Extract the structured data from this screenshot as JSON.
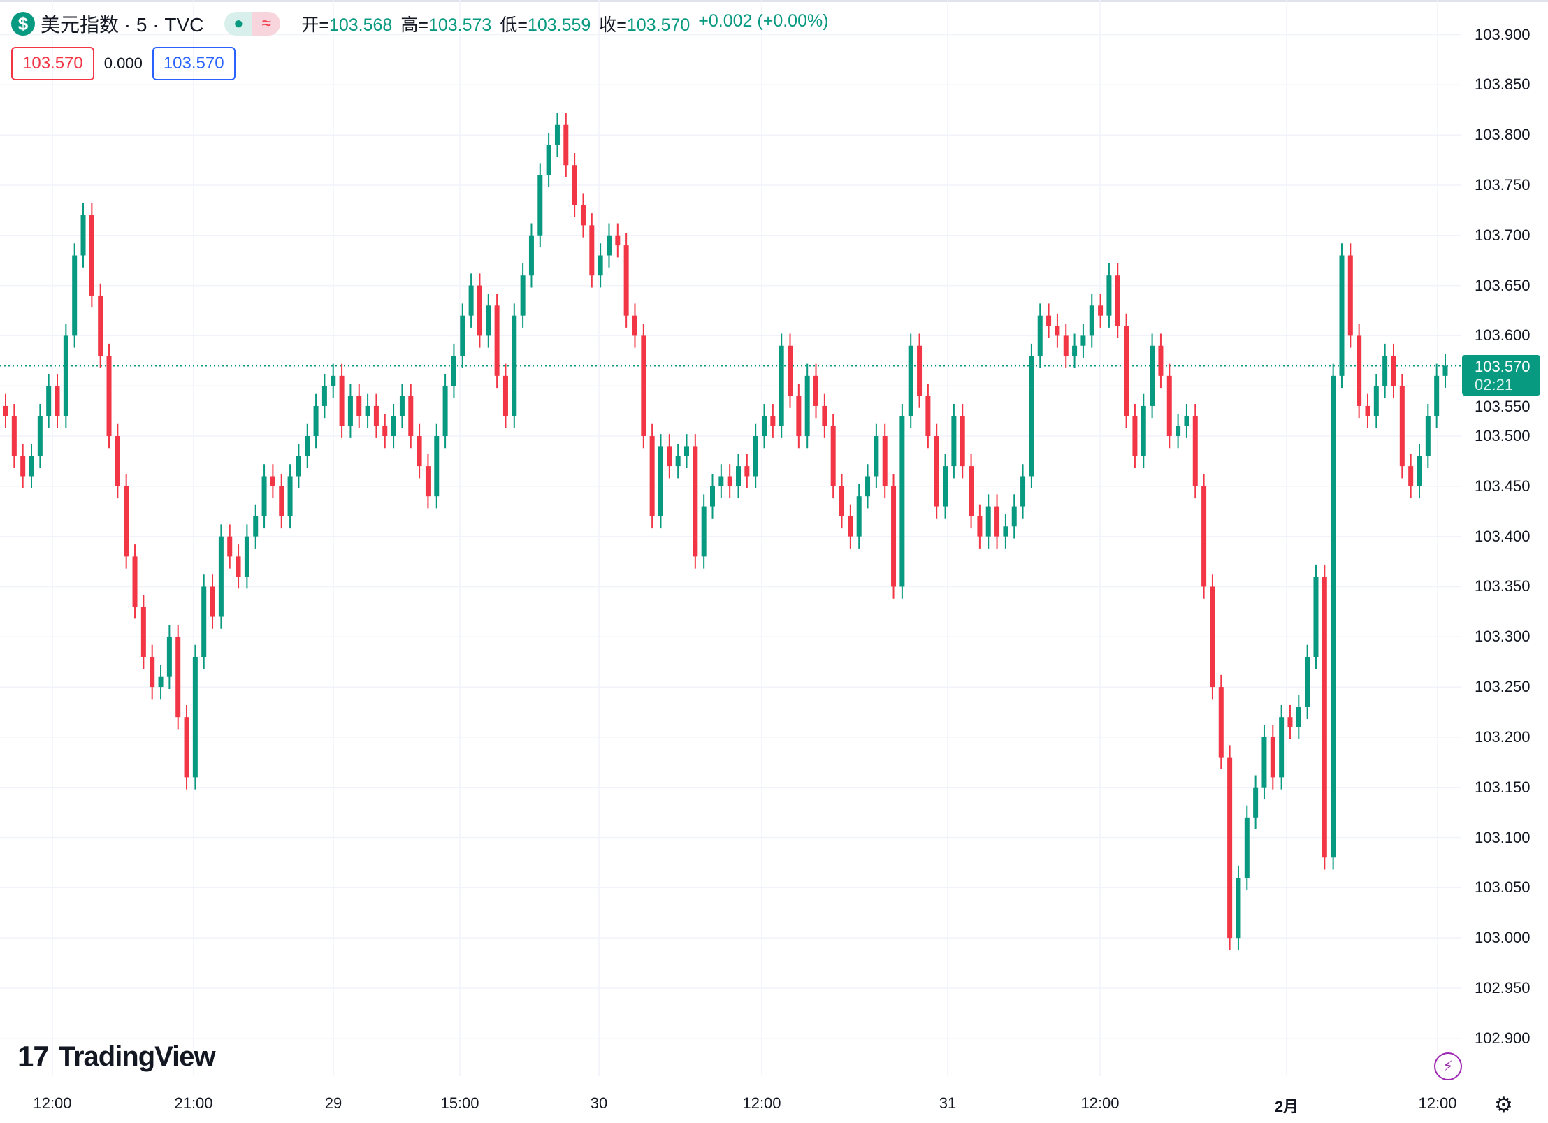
{
  "header": {
    "symbol_icon": "$",
    "title": "美元指数 · 5 · TVC",
    "toggle_icons": [
      "●",
      "≈"
    ],
    "ohlc": [
      {
        "label": "开=",
        "value": "103.568"
      },
      {
        "label": "高=",
        "value": "103.573"
      },
      {
        "label": "低=",
        "value": "103.559"
      },
      {
        "label": "收=",
        "value": "103.570"
      }
    ],
    "change": "+0.002 (+0.00%)",
    "sell_price": "103.570",
    "spread": "0.000",
    "buy_price": "103.570"
  },
  "price_tag": {
    "price": "103.570",
    "countdown": "02:21"
  },
  "logo_text": "TradingView",
  "colors": {
    "up": "#089981",
    "down": "#f23645",
    "grid": "#f0f3fa",
    "accent": "#2962ff"
  },
  "chart_data": {
    "type": "candlestick",
    "y_ticks": [
      "103.900",
      "103.850",
      "103.800",
      "103.750",
      "103.700",
      "103.650",
      "103.600",
      "103.550",
      "103.500",
      "103.450",
      "103.400",
      "103.350",
      "103.300",
      "103.250",
      "103.200",
      "103.150",
      "103.100",
      "103.050",
      "103.000",
      "102.950",
      "102.900"
    ],
    "ylim": [
      102.9,
      103.9
    ],
    "x_ticks": [
      {
        "label": "12:00",
        "bold": false
      },
      {
        "label": "21:00",
        "bold": false
      },
      {
        "label": "29",
        "bold": false
      },
      {
        "label": "15:00",
        "bold": false
      },
      {
        "label": "30",
        "bold": false
      },
      {
        "label": "12:00",
        "bold": false
      },
      {
        "label": "31",
        "bold": false
      },
      {
        "label": "12:00",
        "bold": false
      },
      {
        "label": "2月",
        "bold": true
      },
      {
        "label": "12:00",
        "bold": false
      }
    ],
    "last_price": 103.57,
    "grid": true,
    "closes": [
      103.52,
      103.48,
      103.46,
      103.48,
      103.52,
      103.55,
      103.52,
      103.6,
      103.68,
      103.72,
      103.64,
      103.58,
      103.5,
      103.45,
      103.38,
      103.33,
      103.28,
      103.25,
      103.26,
      103.3,
      103.22,
      103.16,
      103.28,
      103.35,
      103.32,
      103.4,
      103.38,
      103.36,
      103.4,
      103.42,
      103.46,
      103.45,
      103.42,
      103.46,
      103.48,
      103.5,
      103.53,
      103.55,
      103.56,
      103.51,
      103.54,
      103.52,
      103.53,
      103.51,
      103.5,
      103.52,
      103.54,
      103.5,
      103.47,
      103.44,
      103.5,
      103.55,
      103.58,
      103.62,
      103.65,
      103.6,
      103.63,
      103.56,
      103.52,
      103.62,
      103.66,
      103.7,
      103.76,
      103.79,
      103.81,
      103.77,
      103.73,
      103.71,
      103.66,
      103.68,
      103.7,
      103.69,
      103.62,
      103.6,
      103.5,
      103.42,
      103.49,
      103.47,
      103.48,
      103.49,
      103.38,
      103.43,
      103.45,
      103.46,
      103.45,
      103.47,
      103.46,
      103.5,
      103.52,
      103.51,
      103.59,
      103.54,
      103.5,
      103.56,
      103.53,
      103.51,
      103.45,
      103.42,
      103.4,
      103.44,
      103.46,
      103.5,
      103.45,
      103.35,
      103.52,
      103.59,
      103.54,
      103.5,
      103.43,
      103.47,
      103.52,
      103.47,
      103.42,
      103.4,
      103.43,
      103.4,
      103.41,
      103.43,
      103.46,
      103.58,
      103.62,
      103.61,
      103.6,
      103.58,
      103.59,
      103.6,
      103.63,
      103.62,
      103.66,
      103.61,
      103.52,
      103.48,
      103.53,
      103.59,
      103.56,
      103.5,
      103.51,
      103.52,
      103.45,
      103.35,
      103.25,
      103.18,
      103.0,
      103.06,
      103.12,
      103.15,
      103.2,
      103.16,
      103.22,
      103.21,
      103.23,
      103.28,
      103.36,
      103.08,
      103.56,
      103.68,
      103.6,
      103.53,
      103.52,
      103.55,
      103.58,
      103.55,
      103.47,
      103.45,
      103.48,
      103.52,
      103.56,
      103.57
    ]
  }
}
